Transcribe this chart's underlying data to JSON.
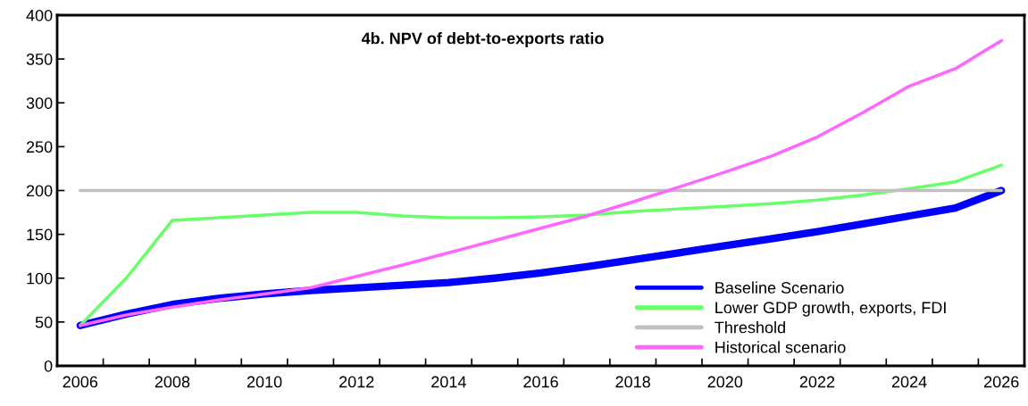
{
  "chart_data": {
    "type": "line",
    "title": "4b. NPV of debt-to-exports ratio",
    "categories": [
      "2006",
      null,
      "2008",
      null,
      "2010",
      null,
      "2012",
      null,
      "2014",
      null,
      "2016",
      null,
      "2018",
      null,
      "2020",
      null,
      "2022",
      null,
      "2024",
      null,
      "2026"
    ],
    "series": [
      {
        "name": "Baseline Scenario",
        "color": "#0000ff",
        "values": [
          46,
          59,
          70,
          77,
          82,
          86,
          89,
          92,
          95,
          100,
          106,
          113,
          121,
          129,
          137,
          145,
          153,
          162,
          171,
          180,
          200
        ]
      },
      {
        "name": "Lower GDP growth, exports, FDI",
        "color": "#66ff66",
        "values": [
          46,
          100,
          166,
          169,
          172,
          175,
          175,
          171,
          169,
          169,
          170,
          172,
          176,
          179,
          182,
          185,
          189,
          195,
          202,
          210,
          229
        ]
      },
      {
        "name": "Threshold",
        "color": "#c0c0c0",
        "values": [
          200,
          200,
          200,
          200,
          200,
          200,
          200,
          200,
          200,
          200,
          200,
          200,
          200,
          200,
          200,
          200,
          200,
          200,
          200,
          200,
          200
        ]
      },
      {
        "name": "Historical scenario",
        "color": "#ff66ff",
        "values": [
          46,
          58,
          67,
          75,
          82,
          89,
          102,
          115,
          129,
          143,
          157,
          171,
          187,
          204,
          221,
          239,
          261,
          289,
          319,
          339,
          371
        ]
      }
    ],
    "ylim": [
      0,
      400
    ],
    "yticks": [
      0,
      50,
      100,
      150,
      200,
      250,
      300,
      350,
      400
    ],
    "grid": false,
    "legend": "bottom right",
    "marker": "none",
    "line_style": "solid"
  }
}
